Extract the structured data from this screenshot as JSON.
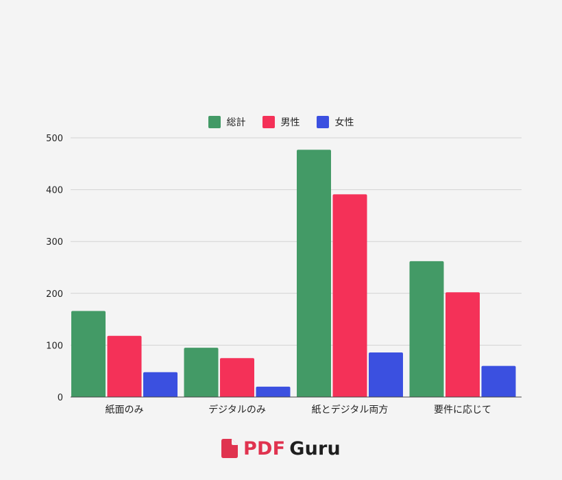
{
  "chart_data": {
    "type": "bar",
    "categories": [
      "紙面のみ",
      "デジタルのみ",
      "紙とデジタル両方",
      "要件に応じて"
    ],
    "series": [
      {
        "name": "総計",
        "values": [
          166,
          95,
          477,
          262
        ]
      },
      {
        "name": "男性",
        "values": [
          118,
          75,
          391,
          202
        ]
      },
      {
        "name": "女性",
        "values": [
          48,
          20,
          86,
          60
        ]
      }
    ],
    "colors": [
      "#439a66",
      "#f43158",
      "#3b50e0"
    ],
    "ylim": [
      0,
      500
    ],
    "yticks": [
      0,
      100,
      200,
      300,
      400,
      500
    ],
    "grid": true,
    "legend_position": "top"
  },
  "brand": {
    "icon": "pdf-file-icon",
    "part1": "PDF",
    "part2": "Guru"
  }
}
